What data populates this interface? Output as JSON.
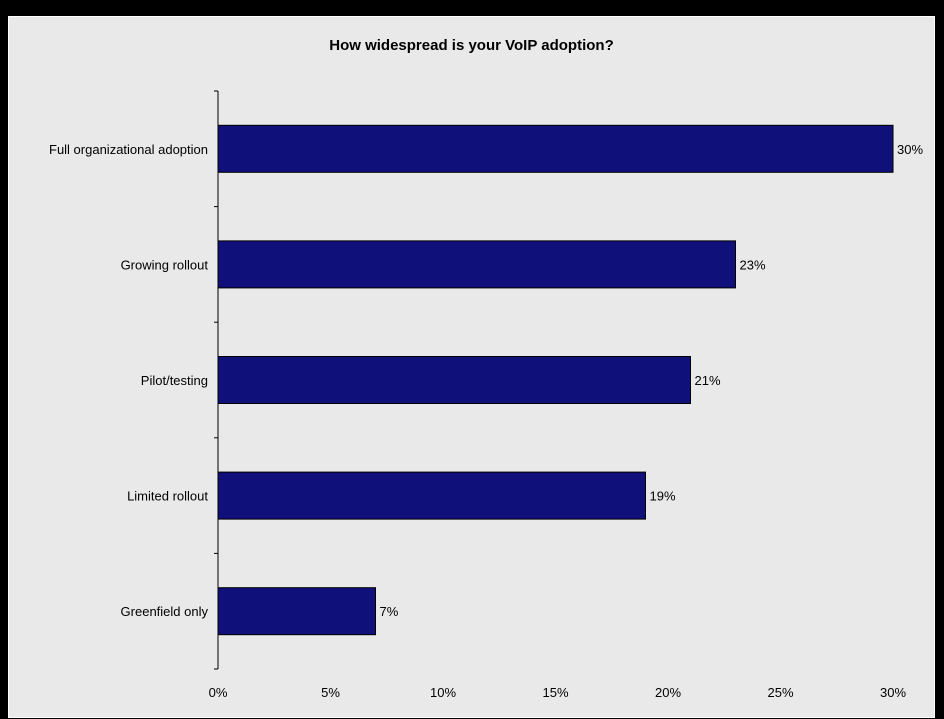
{
  "chart_data": {
    "type": "bar",
    "orientation": "horizontal",
    "title": "How widespread is your VoIP adoption?",
    "categories": [
      "Full organizational adoption",
      "Growing rollout",
      "Pilot/testing",
      "Limited rollout",
      "Greenfield only"
    ],
    "values": [
      30,
      23,
      21,
      19,
      7
    ],
    "value_labels": [
      "30%",
      "23%",
      "21%",
      "19%",
      "7%"
    ],
    "xticks": [
      "0%",
      "5%",
      "10%",
      "15%",
      "20%",
      "25%",
      "30%"
    ],
    "xlim": [
      0,
      30
    ],
    "xlabel": "",
    "ylabel": "",
    "grid": false,
    "colors": {
      "bar": "#10107a",
      "background": "#e9e9e9",
      "frame": "#000000"
    }
  }
}
